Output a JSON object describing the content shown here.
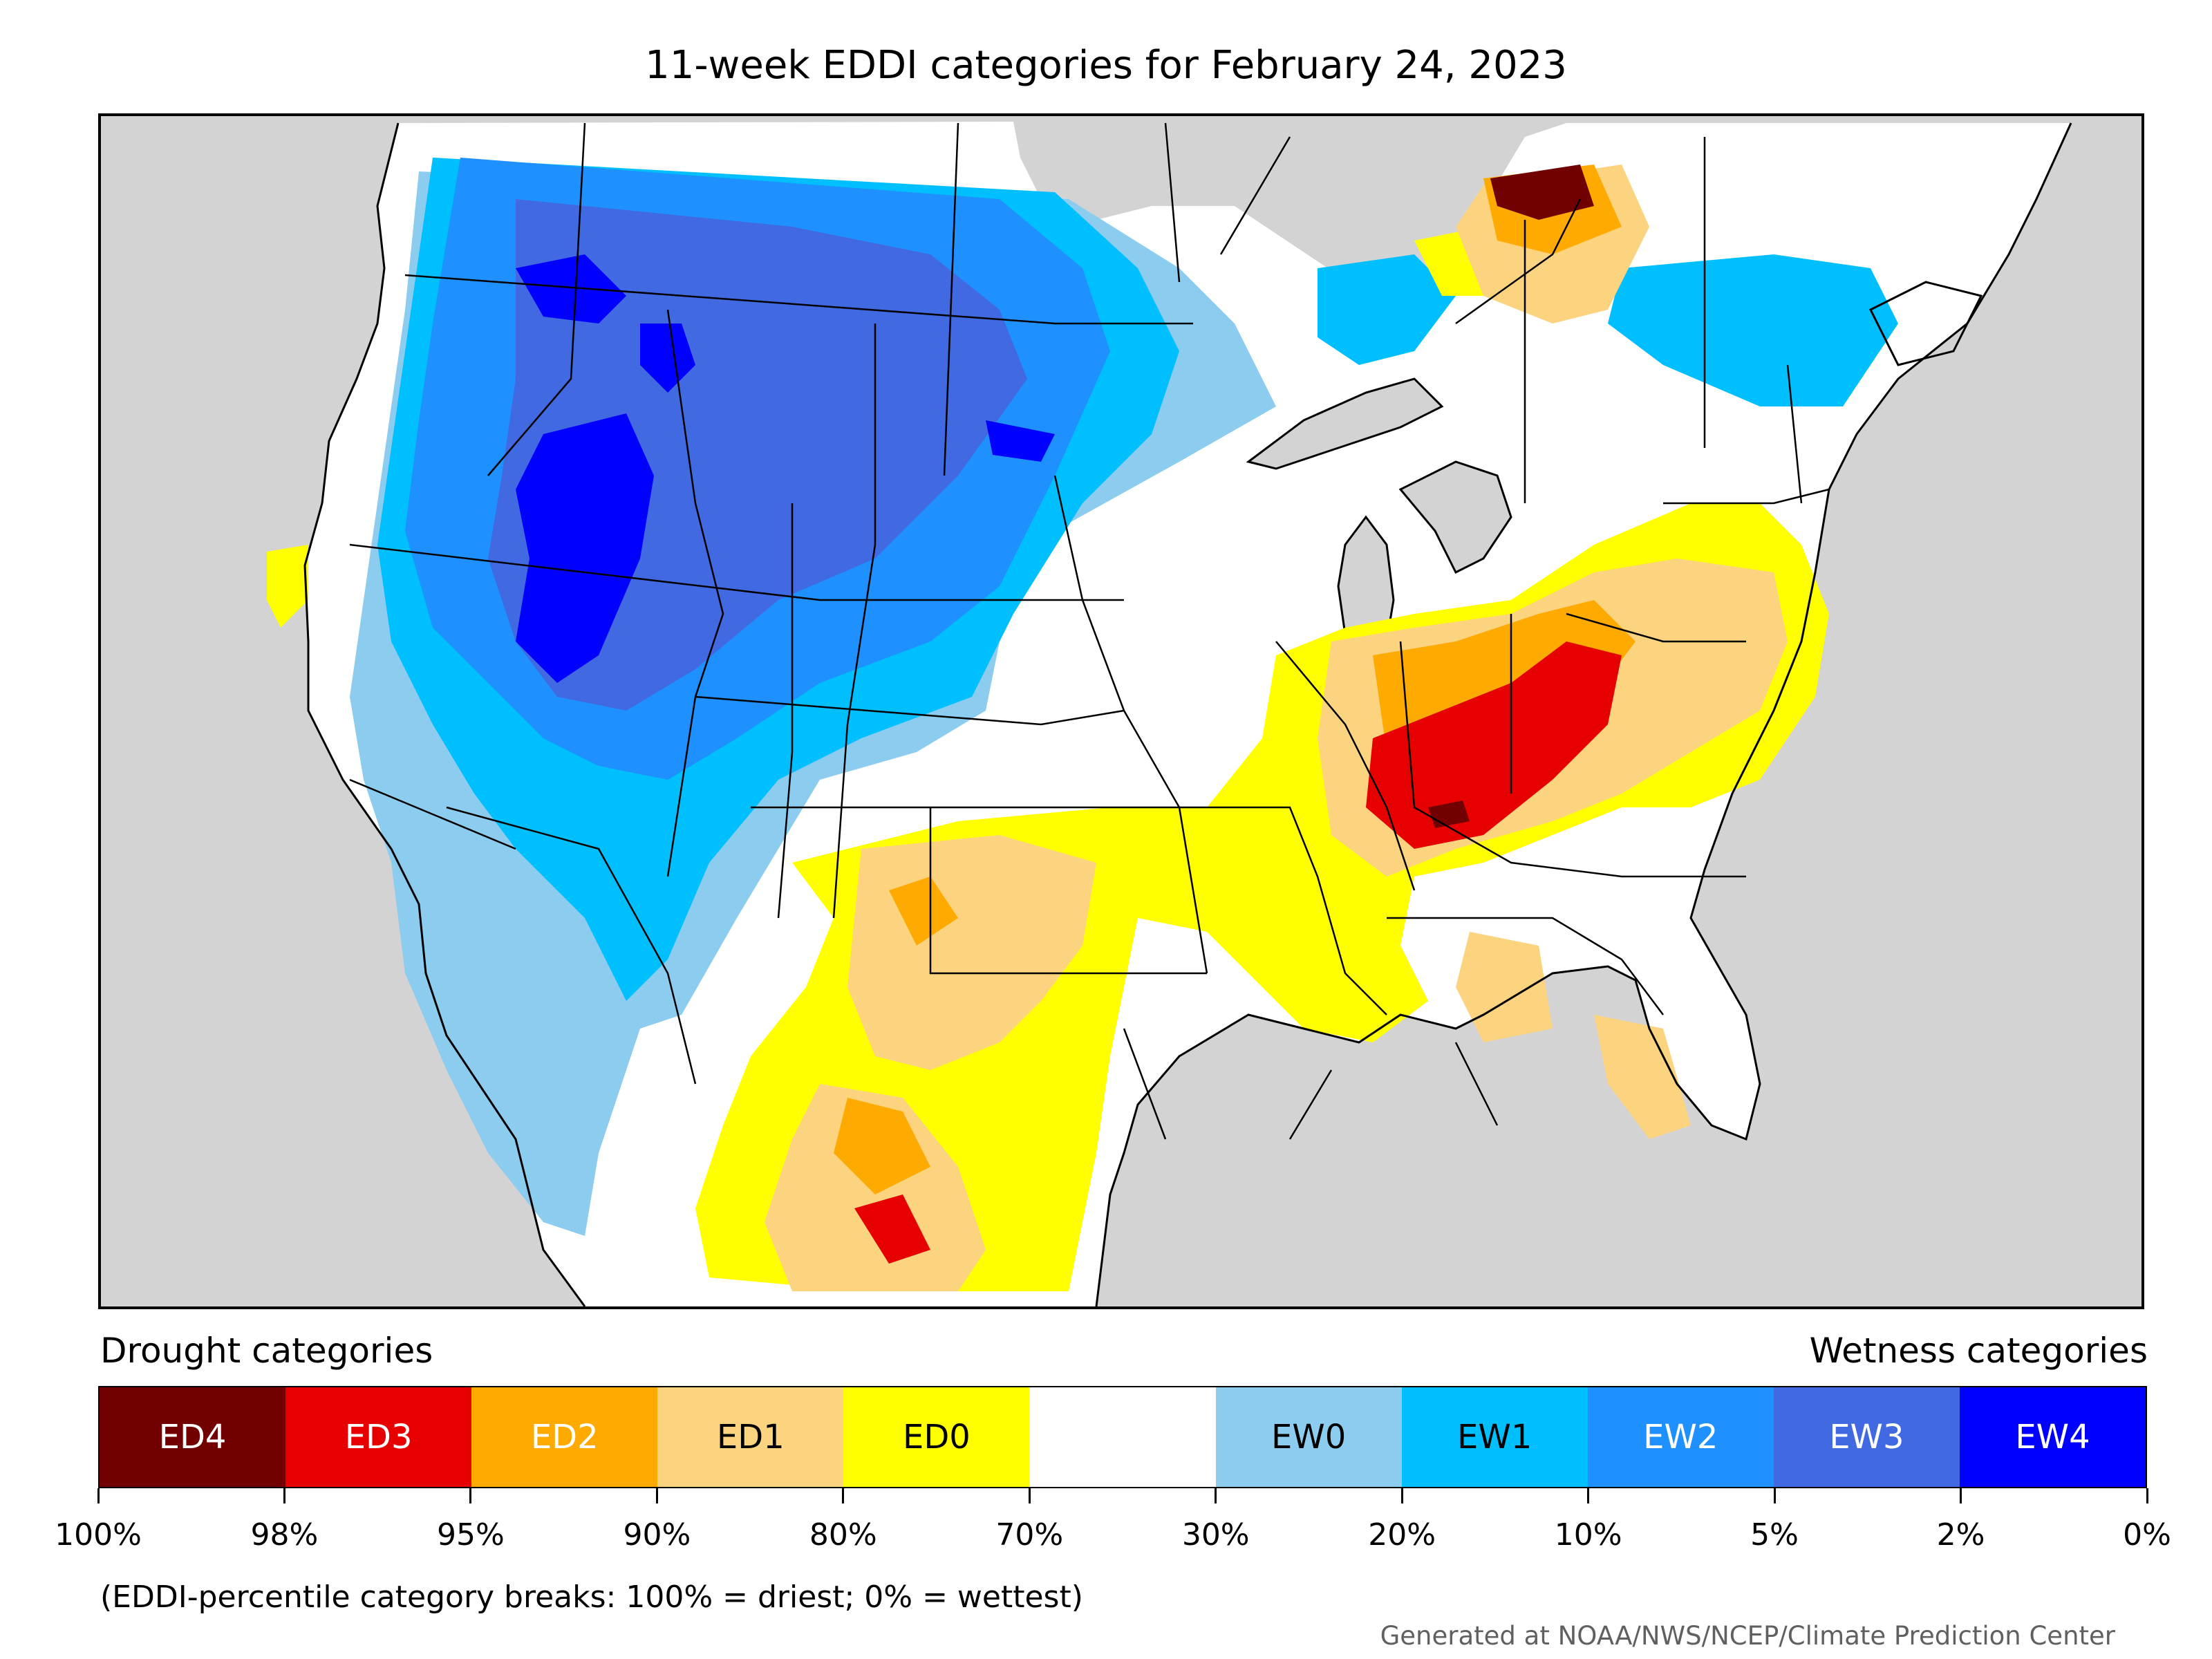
{
  "title": "11-week EDDI categories for February 24, 2023",
  "legend": {
    "drought_heading": "Drought categories",
    "wetness_heading": "Wetness categories",
    "categories": [
      {
        "label": "ED4",
        "color": "#730000",
        "text_color": "#ffffff"
      },
      {
        "label": "ED3",
        "color": "#e60000",
        "text_color": "#ffffff"
      },
      {
        "label": "ED2",
        "color": "#ffaa00",
        "text_color": "#ffffff"
      },
      {
        "label": "ED1",
        "color": "#fcd37f",
        "text_color": "#000000"
      },
      {
        "label": "ED0",
        "color": "#ffff00",
        "text_color": "#000000"
      },
      {
        "label": "",
        "color": "#ffffff",
        "text_color": "#000000"
      },
      {
        "label": "EW0",
        "color": "#8ccdef",
        "text_color": "#000000"
      },
      {
        "label": "EW1",
        "color": "#00bfff",
        "text_color": "#000000"
      },
      {
        "label": "EW2",
        "color": "#1e90ff",
        "text_color": "#ffffff"
      },
      {
        "label": "EW3",
        "color": "#4169e1",
        "text_color": "#ffffff"
      },
      {
        "label": "EW4",
        "color": "#0000ff",
        "text_color": "#ffffff"
      }
    ],
    "tick_labels": [
      "100%",
      "98%",
      "95%",
      "90%",
      "80%",
      "70%",
      "30%",
      "20%",
      "10%",
      "5%",
      "2%",
      "0%"
    ]
  },
  "note": "(EDDI-percentile category breaks: 100% = driest; 0% = wettest)",
  "credit": "Generated at NOAA/NWS/NCEP/Climate Prediction Center",
  "colors": {
    "ocean_land_background": "#d3d3d3",
    "no_category": "#ffffff",
    "borders": "#000000"
  }
}
